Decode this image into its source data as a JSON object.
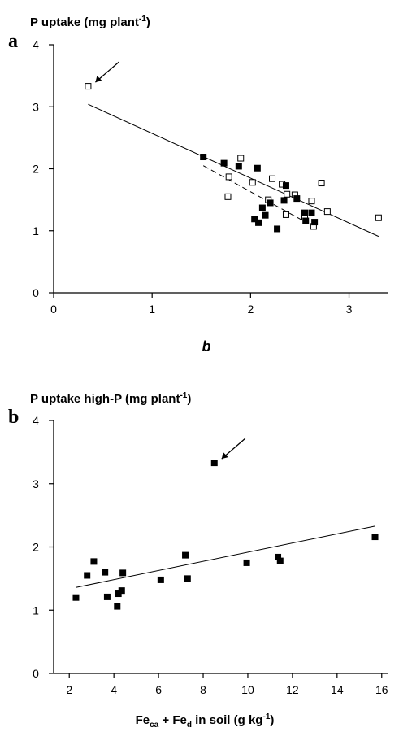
{
  "chart_data": [
    {
      "type": "scatter",
      "panel_label": "a",
      "ylabel": "P uptake (mg plant",
      "ylabel_sup": "-1",
      "ylabel_end": ")",
      "xlabel": "b",
      "xlim": [
        0,
        3.4
      ],
      "ylim": [
        0,
        4
      ],
      "xticks": [
        "0",
        "1",
        "2",
        "3"
      ],
      "yticks": [
        "0",
        "1",
        "2",
        "3",
        "4"
      ],
      "series": [
        {
          "marker": "open-square",
          "points": [
            [
              0.35,
              3.33
            ],
            [
              1.78,
              1.87
            ],
            [
              1.77,
              1.55
            ],
            [
              1.9,
              2.17
            ],
            [
              2.02,
              1.78
            ],
            [
              2.18,
              1.5
            ],
            [
              2.22,
              1.84
            ],
            [
              2.32,
              1.75
            ],
            [
              2.37,
              1.59
            ],
            [
              2.36,
              1.26
            ],
            [
              2.45,
              1.58
            ],
            [
              2.55,
              1.22
            ],
            [
              2.62,
              1.48
            ],
            [
              2.64,
              1.07
            ],
            [
              2.72,
              1.77
            ],
            [
              2.78,
              1.31
            ],
            [
              3.3,
              1.21
            ]
          ]
        },
        {
          "marker": "filled-square",
          "points": [
            [
              1.52,
              2.19
            ],
            [
              1.73,
              2.09
            ],
            [
              1.88,
              2.04
            ],
            [
              2.07,
              2.01
            ],
            [
              2.04,
              1.19
            ],
            [
              2.08,
              1.13
            ],
            [
              2.12,
              1.37
            ],
            [
              2.15,
              1.25
            ],
            [
              2.2,
              1.45
            ],
            [
              2.27,
              1.03
            ],
            [
              2.34,
              1.49
            ],
            [
              2.36,
              1.73
            ],
            [
              2.47,
              1.52
            ],
            [
              2.55,
              1.29
            ],
            [
              2.56,
              1.16
            ],
            [
              2.62,
              1.29
            ],
            [
              2.65,
              1.14
            ]
          ]
        }
      ],
      "lines": [
        {
          "style": "solid",
          "from": [
            0.35,
            3.04
          ],
          "to": [
            3.3,
            0.91
          ]
        },
        {
          "style": "dashed",
          "from": [
            1.52,
            2.05
          ],
          "to": [
            2.56,
            1.14
          ]
        }
      ],
      "annotations": [
        {
          "type": "arrow",
          "target": [
            0.35,
            3.33
          ]
        }
      ]
    },
    {
      "type": "scatter",
      "panel_label": "b",
      "ylabel": "P uptake high-P (mg plant",
      "ylabel_sup": "-1",
      "ylabel_end": ")",
      "xlabel_parts": [
        "Fe",
        "ca",
        " + Fe",
        "d",
        " in soil (g kg",
        "-1",
        ")"
      ],
      "xlim": [
        1.3,
        16.3
      ],
      "ylim": [
        0,
        4
      ],
      "xticks": [
        "2",
        "4",
        "6",
        "8",
        "10",
        "12",
        "14",
        "16"
      ],
      "yticks": [
        "0",
        "1",
        "2",
        "3",
        "4"
      ],
      "series": [
        {
          "marker": "filled-square",
          "points": [
            [
              2.3,
              1.2
            ],
            [
              2.8,
              1.55
            ],
            [
              3.1,
              1.77
            ],
            [
              3.6,
              1.6
            ],
            [
              3.7,
              1.21
            ],
            [
              4.15,
              1.06
            ],
            [
              4.2,
              1.26
            ],
            [
              4.35,
              1.31
            ],
            [
              4.4,
              1.59
            ],
            [
              6.1,
              1.48
            ],
            [
              7.2,
              1.87
            ],
            [
              7.3,
              1.5
            ],
            [
              8.5,
              3.33
            ],
            [
              9.95,
              1.75
            ],
            [
              11.35,
              1.84
            ],
            [
              11.45,
              1.78
            ],
            [
              15.7,
              2.16
            ]
          ]
        }
      ],
      "lines": [
        {
          "style": "solid",
          "from": [
            2.3,
            1.36
          ],
          "to": [
            15.7,
            2.33
          ]
        }
      ],
      "annotations": [
        {
          "type": "arrow",
          "target": [
            8.5,
            3.33
          ]
        }
      ]
    }
  ]
}
